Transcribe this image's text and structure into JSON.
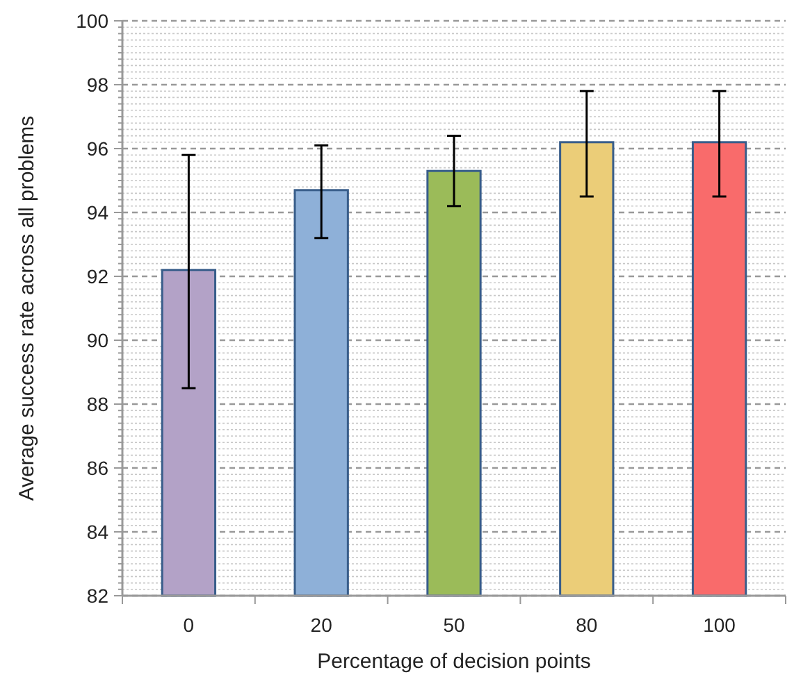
{
  "chart_data": {
    "type": "bar",
    "xlabel": "Percentage of decision points",
    "ylabel": "Average success rate across all problems",
    "categories": [
      "0",
      "20",
      "50",
      "80",
      "100"
    ],
    "values": [
      92.2,
      94.7,
      95.3,
      96.2,
      96.2
    ],
    "errors": [
      [
        88.5,
        95.8
      ],
      [
        93.2,
        96.1
      ],
      [
        94.2,
        96.4
      ],
      [
        94.5,
        97.8
      ],
      [
        94.5,
        97.8
      ]
    ],
    "colors": [
      "#b3a2c7",
      "#8eb0d8",
      "#9bbb59",
      "#ebcd78",
      "#f96b6b"
    ],
    "ylim": [
      82,
      100
    ],
    "yticks": [
      82,
      84,
      86,
      88,
      90,
      92,
      94,
      96,
      98,
      100
    ],
    "grid": "y"
  }
}
